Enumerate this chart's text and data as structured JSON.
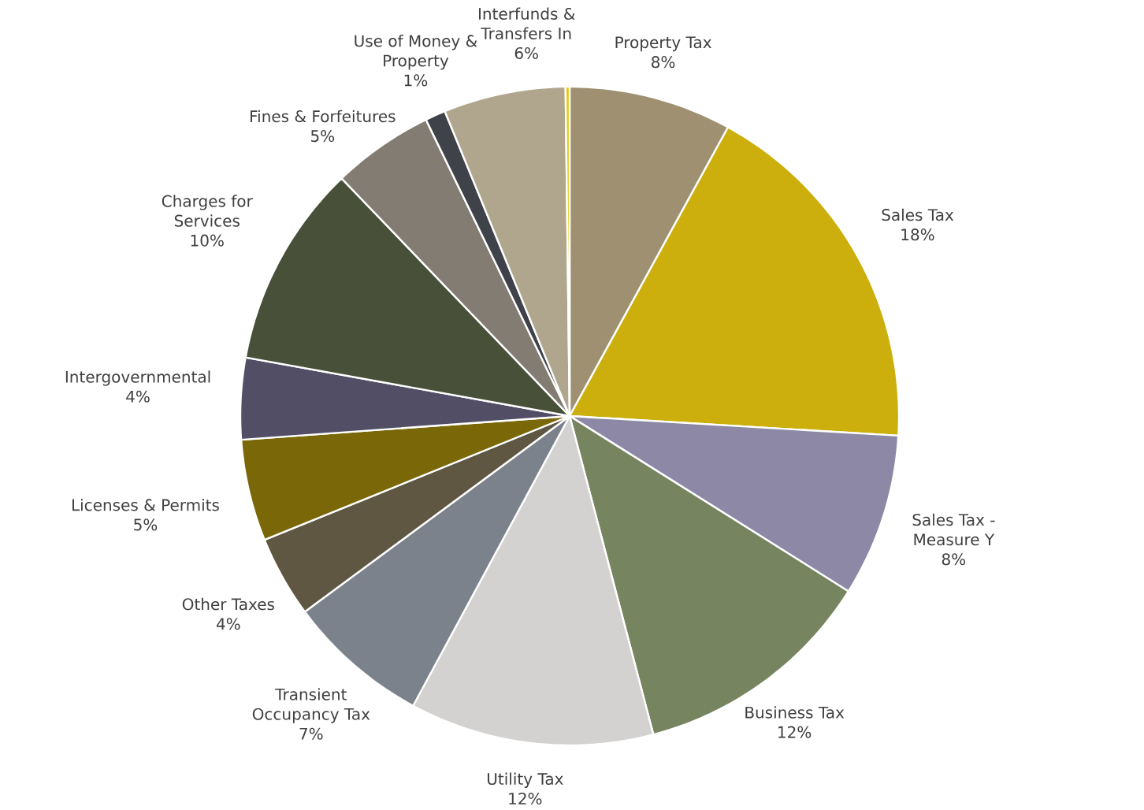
{
  "chart_data": {
    "type": "pie",
    "categories": [
      "Property Tax",
      "Sales Tax",
      "Sales Tax - Measure Y",
      "Business Tax",
      "Utility Tax",
      "Transient Occupancy Tax",
      "Other Taxes",
      "Licenses & Permits",
      "Intergovernmental",
      "Charges for Services",
      "Fines & Forfeitures",
      "Use of Money & Property",
      "Interfunds & Transfers In",
      null
    ],
    "values": [
      8,
      18,
      8,
      12,
      12,
      7,
      4,
      5,
      4,
      10,
      5,
      1,
      6,
      0.2
    ],
    "value_labels": [
      "8%",
      "18%",
      "8%",
      "12%",
      "12%",
      "7%",
      "4%",
      "5%",
      "4%",
      "10%",
      "5%",
      "1%",
      "6%",
      null
    ],
    "colors": [
      "#9e9070",
      "#ccaf0c",
      "#8d88a5",
      "#76845f",
      "#d3d2d0",
      "#7b828c",
      "#5f5741",
      "#7a6808",
      "#524e66",
      "#485039",
      "#827c72",
      "#3f4249",
      "#b0a68e",
      "#e8c800"
    ]
  }
}
